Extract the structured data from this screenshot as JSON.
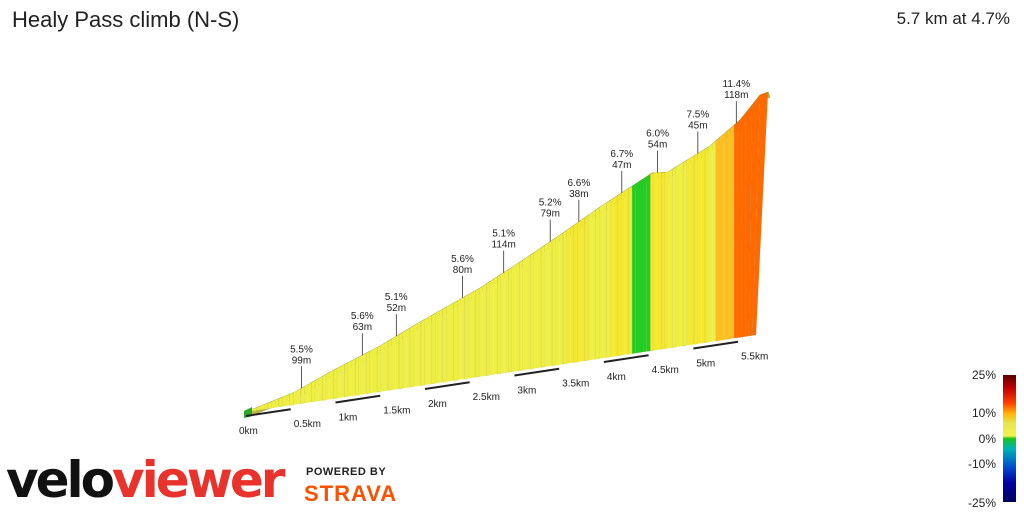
{
  "header": {
    "title": "Healy Pass climb (N-S)",
    "summary": "5.7 km at 4.7%"
  },
  "branding": {
    "logo_part1": "velo",
    "logo_part2": "viewer",
    "powered_by": "POWERED BY",
    "strava": "STRAVA"
  },
  "legend": {
    "labels": [
      "25%",
      "10%",
      "0%",
      "-10%",
      "-25%"
    ]
  },
  "chart_data": {
    "type": "area",
    "title": "Healy Pass climb (N-S)",
    "x_unit": "km",
    "distance_total_km": 5.7,
    "average_gradient_percent": 4.7,
    "x_ticks": [
      "0km",
      "0.5km",
      "1km",
      "1.5km",
      "2km",
      "2.5km",
      "3km",
      "3.5km",
      "4km",
      "4.5km",
      "5km",
      "5.5km"
    ],
    "x_tick_values": [
      0,
      0.5,
      1,
      1.5,
      2,
      2.5,
      3,
      3.5,
      4,
      4.5,
      5,
      5.5
    ],
    "segments": [
      {
        "gradient": "5.5%",
        "length": "99m",
        "at_km": 0.62,
        "grad_value": 5.5
      },
      {
        "gradient": "5.6%",
        "length": "63m",
        "at_km": 1.3,
        "grad_value": 5.6
      },
      {
        "gradient": "5.1%",
        "length": "52m",
        "at_km": 1.68,
        "grad_value": 5.1
      },
      {
        "gradient": "5.6%",
        "length": "80m",
        "at_km": 2.42,
        "grad_value": 5.6
      },
      {
        "gradient": "5.1%",
        "length": "114m",
        "at_km": 2.88,
        "grad_value": 5.1
      },
      {
        "gradient": "5.2%",
        "length": "79m",
        "at_km": 3.4,
        "grad_value": 5.2
      },
      {
        "gradient": "6.6%",
        "length": "38m",
        "at_km": 3.72,
        "grad_value": 6.6
      },
      {
        "gradient": "6.7%",
        "length": "47m",
        "at_km": 4.2,
        "grad_value": 6.7
      },
      {
        "gradient": "6.0%",
        "length": "54m",
        "at_km": 4.6,
        "grad_value": 6.0
      },
      {
        "gradient": "7.5%",
        "length": "45m",
        "at_km": 5.05,
        "grad_value": 7.5
      },
      {
        "gradient": "11.4%",
        "length": "118m",
        "at_km": 5.48,
        "grad_value": 11.4
      }
    ]
  }
}
